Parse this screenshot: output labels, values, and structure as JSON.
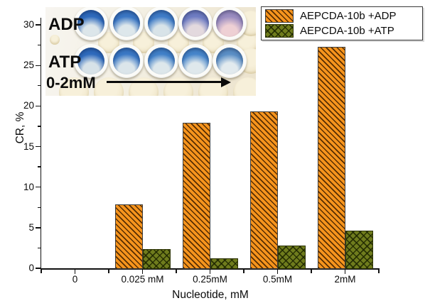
{
  "chart_data": {
    "type": "bar",
    "categories": [
      "0",
      "0.025 mM",
      "0.25mM",
      "0.5mM",
      "2mM"
    ],
    "series": [
      {
        "name": "AEPCDA-10b +ADP",
        "values": [
          0,
          7.9,
          17.9,
          19.3,
          27.3
        ],
        "fill": "#f6941d",
        "hatch": "diagonal",
        "hatch_color": "#482400"
      },
      {
        "name": "AEPCDA-10b +ATP",
        "values": [
          0,
          2.4,
          1.2,
          2.8,
          4.6
        ],
        "fill": "#6f7c1d",
        "hatch": "crosshatch",
        "hatch_color": "#1e2600"
      }
    ],
    "title": "",
    "xlabel": "Nucleotide, mM",
    "ylabel": "CR, %",
    "ylim": [
      0,
      31
    ],
    "yticks": [
      0,
      5,
      10,
      15,
      20,
      25,
      30
    ],
    "y_minor_step": 2.5,
    "grid": false,
    "legend_position": "top-right"
  },
  "inset": {
    "label_row1": "ADP",
    "label_row2": "ATP",
    "label_range": "0-2mM",
    "arrow_direction": "right",
    "wells": {
      "row1": [
        [
          "#2e6abc",
          "#dce6ea"
        ],
        [
          "#3a76c3",
          "#dde7eb"
        ],
        [
          "#3f7cc7",
          "#d8e3e8"
        ],
        [
          "#6e7cc2",
          "#e3d9de"
        ],
        [
          "#9a8cc0",
          "#eed0d4"
        ]
      ],
      "row2": [
        [
          "#2e6abc",
          "#d7e2e8"
        ],
        [
          "#3a78c5",
          "#dbe5ea"
        ],
        [
          "#4080c8",
          "#dde7eb"
        ],
        [
          "#4685ca",
          "#dfe8ec"
        ],
        [
          "#5a8ec5",
          "#e2eaee"
        ]
      ]
    }
  }
}
